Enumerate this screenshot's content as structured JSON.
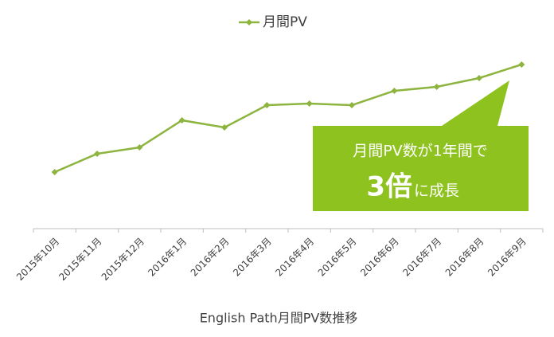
{
  "chart_data": {
    "type": "line",
    "title": "English Path月間PV数推移",
    "categories": [
      "2015年10月",
      "2015年11月",
      "2015年12月",
      "2016年1月",
      "2016年2月",
      "2016年3月",
      "2016年4月",
      "2016年5月",
      "2016年6月",
      "2016年7月",
      "2016年8月",
      "2016年9月"
    ],
    "series": [
      {
        "name": "月間PV",
        "color": "#8db43e",
        "values": [
          71,
          94,
          102,
          136,
          127,
          155,
          157,
          155,
          173,
          178,
          189,
          206
        ]
      }
    ],
    "ylim": [
      0,
      230
    ],
    "legend": "top",
    "annotation": {
      "text": "月間PV数が1年間で",
      "emphasis": "3倍",
      "suffix": "に成長",
      "color": "#8dc21f"
    }
  }
}
